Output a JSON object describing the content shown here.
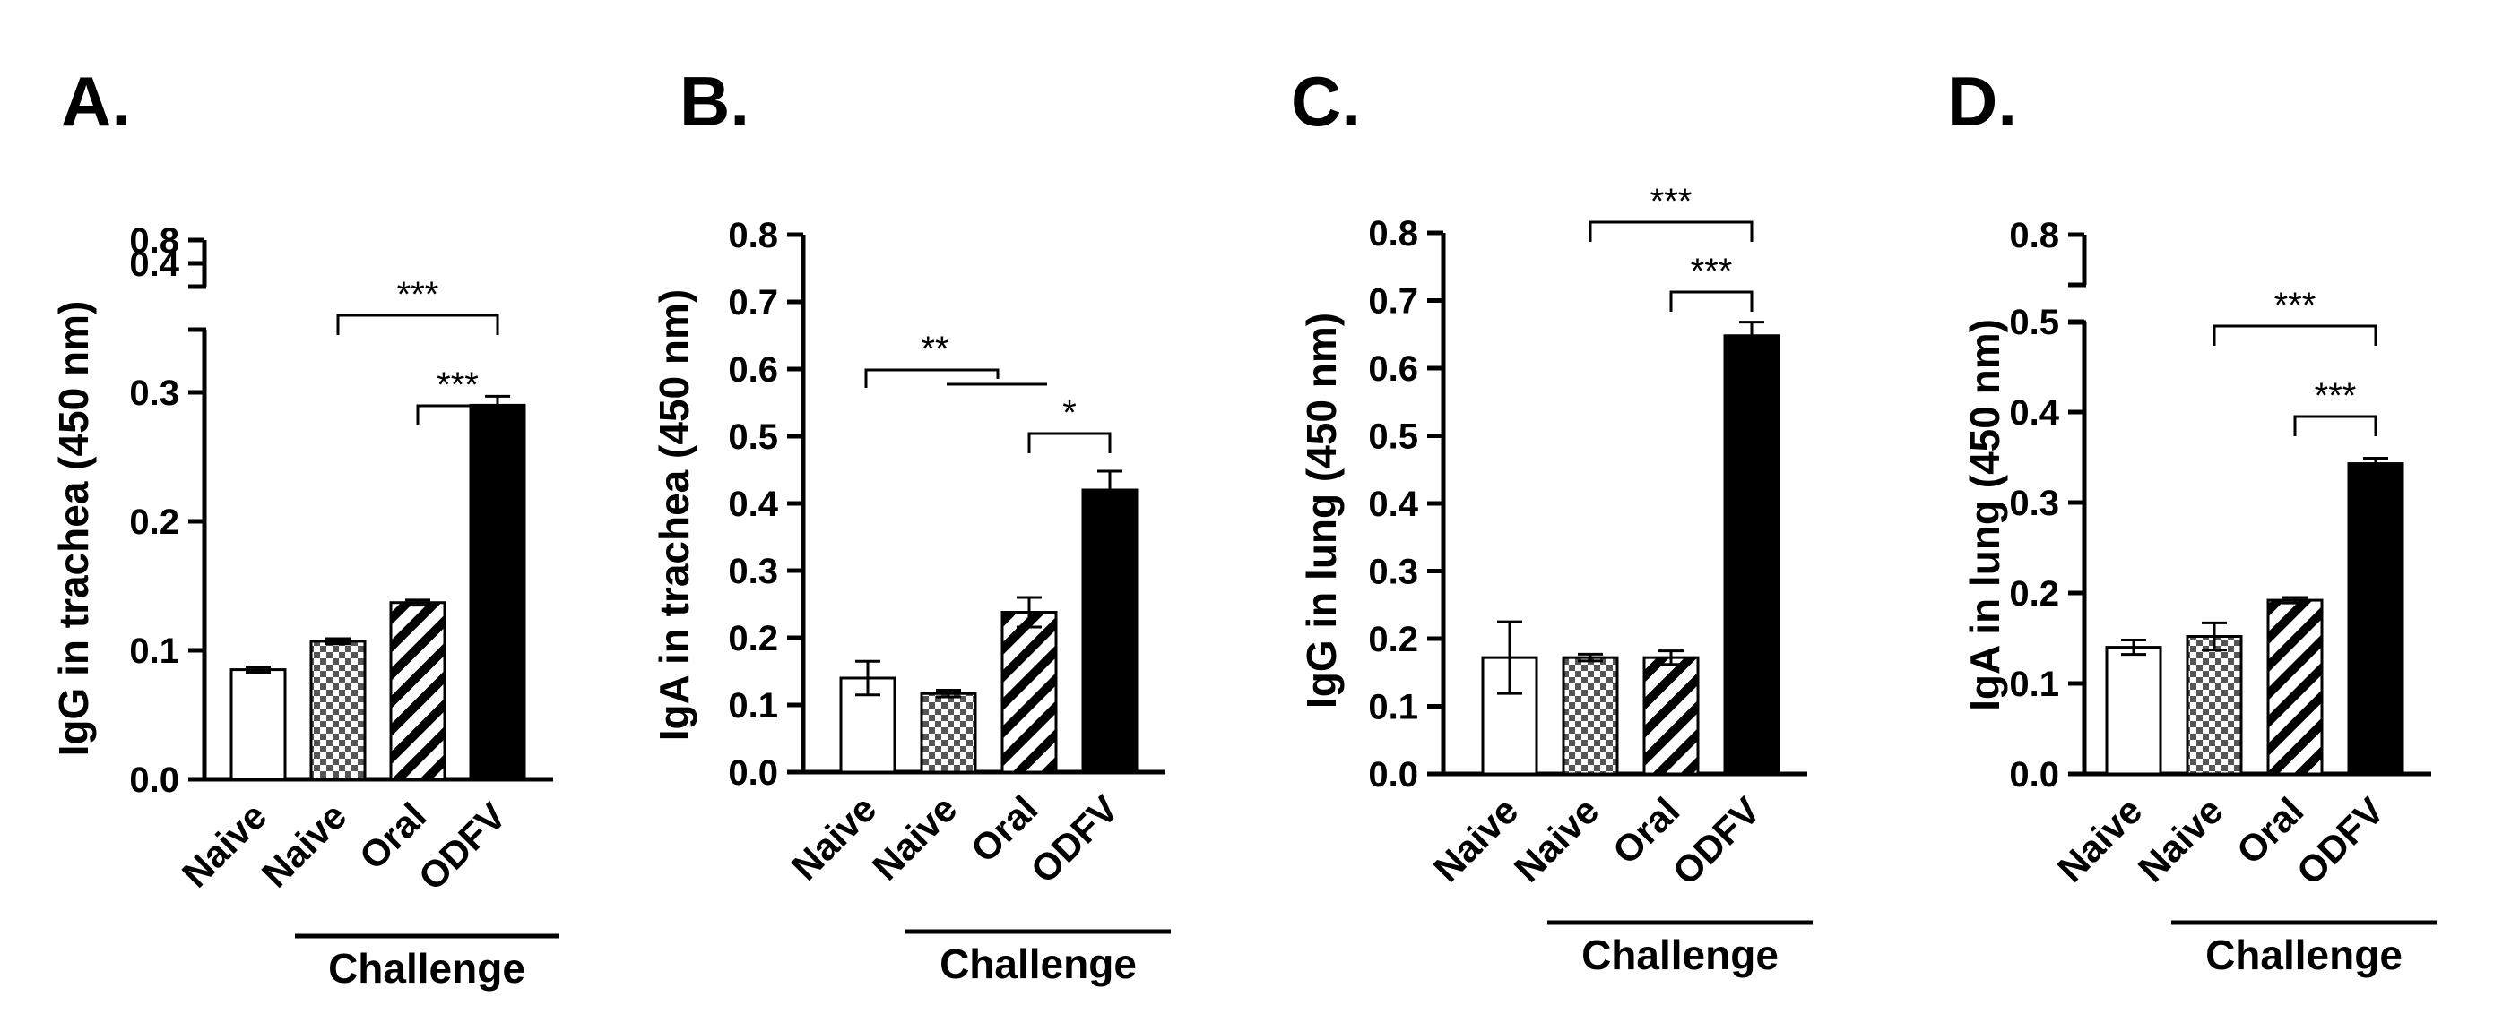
{
  "chart_data": [
    {
      "type": "bar",
      "panel_label": "A.",
      "ylabel": "IgG in trachea (450 nm)",
      "categories": [
        "Naive",
        "Naive",
        "Oral",
        "ODFV"
      ],
      "values": [
        0.085,
        0.107,
        0.137,
        0.29
      ],
      "errors": [
        0.002,
        0.002,
        0.002,
        0.007
      ],
      "patterns": [
        "white",
        "checker",
        "hatch",
        "black"
      ],
      "ylim": [
        0,
        0.8
      ],
      "axis_break": {
        "from": 0.4,
        "to": 0.8
      },
      "yticks": [
        0.0,
        0.1,
        0.2,
        0.3,
        0.4,
        0.8
      ],
      "ytick_labels": [
        "0.0",
        "0.1",
        "0.2",
        "0.3",
        "0.4",
        "0.8"
      ],
      "group_label": "Challenge",
      "group_span": [
        1,
        3
      ],
      "significance": [
        {
          "from": 1,
          "to": 3,
          "label": "***"
        },
        {
          "from": 2,
          "to": 3,
          "label": "***"
        }
      ]
    },
    {
      "type": "bar",
      "panel_label": "B.",
      "ylabel": "IgA in trachea (450 nm)",
      "categories": [
        "Naive",
        "Naive",
        "Oral",
        "ODFV"
      ],
      "values": [
        0.14,
        0.117,
        0.238,
        0.42
      ],
      "errors": [
        0.025,
        0.005,
        0.022,
        0.028
      ],
      "patterns": [
        "white",
        "checker",
        "hatch",
        "black"
      ],
      "ylim": [
        0,
        0.8
      ],
      "yticks": [
        0.0,
        0.1,
        0.2,
        0.3,
        0.4,
        0.5,
        0.6,
        0.7,
        0.8
      ],
      "ytick_labels": [
        "0.0",
        "0.1",
        "0.2",
        "0.3",
        "0.4",
        "0.5",
        "0.6",
        "0.7",
        "0.8"
      ],
      "group_label": "Challenge",
      "group_span": [
        1,
        3
      ],
      "significance": [
        {
          "from": 1,
          "to": 2,
          "label": "**",
          "layout": "split"
        },
        {
          "from": 2,
          "to": 3,
          "label": "*"
        }
      ]
    },
    {
      "type": "bar",
      "panel_label": "C.",
      "ylabel": "IgG in lung (450 nm)",
      "categories": [
        "Naive",
        "Naive",
        "Oral",
        "ODFV"
      ],
      "values": [
        0.172,
        0.172,
        0.172,
        0.648
      ],
      "errors": [
        0.053,
        0.005,
        0.01,
        0.02
      ],
      "patterns": [
        "white",
        "checker",
        "hatch",
        "black"
      ],
      "ylim": [
        0,
        0.8
      ],
      "yticks": [
        0.0,
        0.1,
        0.2,
        0.3,
        0.4,
        0.5,
        0.6,
        0.7,
        0.8
      ],
      "ytick_labels": [
        "0.0",
        "0.1",
        "0.2",
        "0.3",
        "0.4",
        "0.5",
        "0.6",
        "0.7",
        "0.8"
      ],
      "group_label": "Challenge",
      "group_span": [
        1,
        3
      ],
      "significance": [
        {
          "from": 1,
          "to": 3,
          "label": "***"
        },
        {
          "from": 2,
          "to": 3,
          "label": "***"
        }
      ]
    },
    {
      "type": "bar",
      "panel_label": "D.",
      "ylabel": "IgA in lung (450 nm)",
      "categories": [
        "Naive",
        "Naive",
        "Oral",
        "ODFV"
      ],
      "values": [
        0.14,
        0.152,
        0.192,
        0.343
      ],
      "errors": [
        0.008,
        0.015,
        0.003,
        0.006
      ],
      "patterns": [
        "white",
        "checker",
        "hatch",
        "black"
      ],
      "ylim": [
        0,
        0.8
      ],
      "axis_break": {
        "from": 0.5,
        "to": 0.8
      },
      "yticks": [
        0.0,
        0.1,
        0.2,
        0.3,
        0.4,
        0.5,
        0.8
      ],
      "ytick_labels": [
        "0.0",
        "0.1",
        "0.2",
        "0.3",
        "0.4",
        "0.5",
        "0.8"
      ],
      "group_label": "Challenge",
      "group_span": [
        1,
        3
      ],
      "significance": [
        {
          "from": 1,
          "to": 3,
          "label": "***"
        },
        {
          "from": 2,
          "to": 3,
          "label": "***"
        }
      ]
    }
  ]
}
